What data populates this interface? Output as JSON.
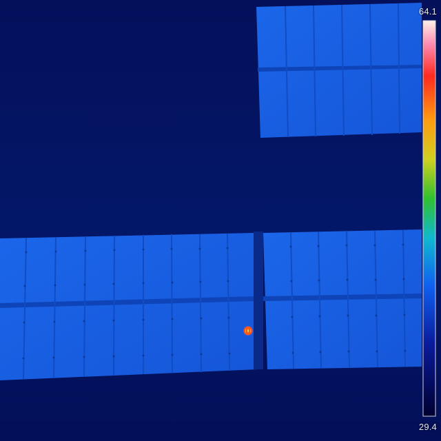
{
  "color_scale": {
    "max_label": "64.1",
    "min_label": "29.4",
    "colors": {
      "background": "#031060",
      "panel": "#1a5fe0",
      "panel_edge": "#0c3fb0",
      "hotspot_core": "#e8b030",
      "hotspot_ring": "#ff3a1a"
    }
  },
  "scene": {
    "subject": "solar-panel-array",
    "hotspot_count": 1
  }
}
